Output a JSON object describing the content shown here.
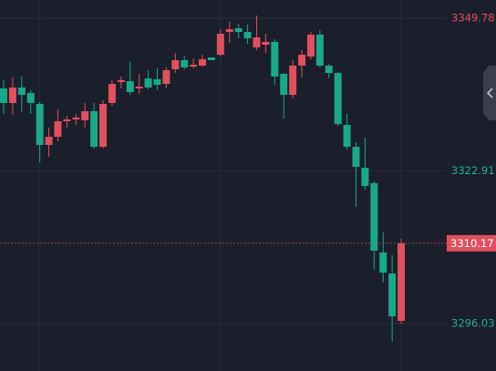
{
  "chart_data": {
    "type": "candlestick",
    "ylim": [
      3287.69,
      3352.99
    ],
    "yticks": [
      3349.78,
      3322.91,
      3296.03
    ],
    "ytick_colors": [
      "#e0505e",
      "#21b092",
      "#21b092"
    ],
    "up_color": "#e0505e",
    "down_color": "#18a98a",
    "grid": true,
    "last_price": 3310.17,
    "open": [
      3337.43,
      3334.86,
      3337.59,
      3336.62,
      3334.7,
      3327.48,
      3328.92,
      3331.65,
      3331.97,
      3331.81,
      3333.42,
      3327.16,
      3334.86,
      3338.55,
      3338.71,
      3337.43,
      3339.19,
      3339.03,
      3338.23,
      3340.8,
      3342.4,
      3341.28,
      3341.44,
      3342.88,
      3343.36,
      3347.37,
      3348.02,
      3347.37,
      3344.65,
      3345.13,
      3345.61,
      3339.99,
      3336.3,
      3341.44,
      3343.04,
      3346.89,
      3341.44,
      3340.15,
      3331.01,
      3327.16,
      3323.47,
      3320.74,
      3308.55,
      3304.86,
      3296.52
    ],
    "high": [
      3338.87,
      3339.35,
      3339.51,
      3337.11,
      3335.02,
      3330.53,
      3333.74,
      3332.61,
      3332.94,
      3334.86,
      3334.86,
      3335.34,
      3338.87,
      3339.51,
      3342.08,
      3339.99,
      3340.64,
      3340.96,
      3341.12,
      3343.68,
      3343.2,
      3342.72,
      3343.36,
      3342.88,
      3347.85,
      3349.14,
      3348.82,
      3348.66,
      3350.26,
      3347.05,
      3346.09,
      3340.15,
      3342.4,
      3344.17,
      3347.37,
      3347.69,
      3341.76,
      3340.31,
      3332.94,
      3327.96,
      3328.76,
      3321.06,
      3312.07,
      3308.07,
      3310.95
    ],
    "low": [
      3332.94,
      3332.77,
      3333.26,
      3332.94,
      3324.43,
      3325.4,
      3328.12,
      3330.53,
      3331.01,
      3330.53,
      3326.84,
      3326.84,
      3334.38,
      3337.43,
      3336.3,
      3336.46,
      3337.27,
      3337.11,
      3337.43,
      3340.15,
      3340.8,
      3340.96,
      3341.28,
      3342.4,
      3343.04,
      3345.45,
      3346.25,
      3345.29,
      3344.17,
      3343.68,
      3338.07,
      3332.13,
      3335.66,
      3339.35,
      3342.56,
      3341.12,
      3339.19,
      3330.85,
      3326.68,
      3316.57,
      3319.62,
      3305.5,
      3303.26,
      3292.83,
      3296.03
    ],
    "close": [
      3334.86,
      3337.59,
      3336.3,
      3334.86,
      3327.48,
      3328.92,
      3331.65,
      3331.97,
      3332.29,
      3333.42,
      3327.16,
      3334.7,
      3338.23,
      3338.87,
      3336.79,
      3337.75,
      3337.59,
      3338.07,
      3340.64,
      3342.4,
      3341.12,
      3341.6,
      3342.56,
      3342.4,
      3347.05,
      3347.85,
      3347.37,
      3346.25,
      3346.41,
      3345.61,
      3339.51,
      3336.3,
      3341.44,
      3343.36,
      3346.89,
      3341.44,
      3340.15,
      3331.17,
      3327.16,
      3323.63,
      3320.26,
      3308.87,
      3305.02,
      3297.32,
      3310.17
    ]
  }
}
